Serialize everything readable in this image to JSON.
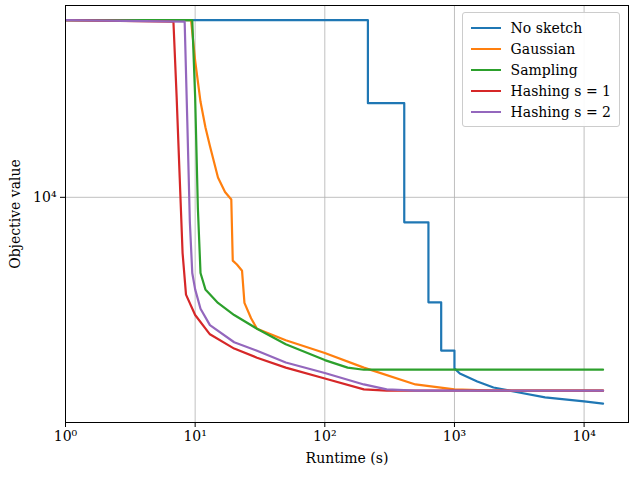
{
  "chart_data": {
    "type": "line",
    "xlabel": "Runtime (s)",
    "ylabel": "Objective value",
    "log": true,
    "grid": true,
    "legend": "upper right",
    "xlim": [
      1,
      22000
    ],
    "ylim": [
      1270,
      58000
    ],
    "xticks": [
      {
        "value": 1,
        "label": "10⁰"
      },
      {
        "value": 10,
        "label": "10¹"
      },
      {
        "value": 100,
        "label": "10²"
      },
      {
        "value": 1000,
        "label": "10³"
      },
      {
        "value": 10000,
        "label": "10⁴"
      }
    ],
    "yticks": [
      {
        "value": 10000,
        "label": "10⁴"
      }
    ],
    "series": [
      {
        "name": "No sketch",
        "color": "#1f77b4",
        "x": [
          1,
          215,
          215,
          410,
          410,
          630,
          630,
          790,
          790,
          1000,
          1000,
          1100,
          1500,
          2000,
          3000,
          5000,
          10000,
          14000
        ],
        "values": [
          50700,
          50700,
          23700,
          23700,
          7950,
          7950,
          3820,
          3820,
          2455,
          2455,
          2085,
          1990,
          1850,
          1750,
          1680,
          1600,
          1540,
          1510
        ]
      },
      {
        "name": "Gaussian",
        "color": "#ff7f0e",
        "x": [
          1,
          9.3,
          10,
          11,
          12,
          13,
          15,
          17,
          19,
          19.5,
          21,
          23,
          24,
          27,
          30,
          50,
          100,
          200,
          500,
          1000,
          2000,
          14000
        ],
        "values": [
          50700,
          50700,
          35000,
          24000,
          19000,
          16000,
          12000,
          10500,
          9800,
          5600,
          5400,
          5100,
          3800,
          3300,
          3000,
          2700,
          2400,
          2100,
          1800,
          1720,
          1700,
          1700
        ]
      },
      {
        "name": "Sampling",
        "color": "#2ca02c",
        "x": [
          1,
          9.5,
          10,
          10.5,
          11,
          12,
          15,
          20,
          30,
          50,
          100,
          150,
          200,
          14000
        ],
        "values": [
          50700,
          50700,
          25000,
          9000,
          5000,
          4300,
          3800,
          3400,
          3000,
          2600,
          2250,
          2100,
          2060,
          2060
        ]
      },
      {
        "name": "Hashing s = 1",
        "color": "#d62728",
        "x": [
          1,
          6.8,
          7.2,
          7.6,
          8,
          8.5,
          10,
          13,
          20,
          30,
          50,
          100,
          200,
          300,
          1000,
          14000
        ],
        "values": [
          50700,
          50000,
          25000,
          12000,
          6000,
          4100,
          3400,
          2850,
          2500,
          2300,
          2100,
          1900,
          1720,
          1700,
          1700,
          1700
        ]
      },
      {
        "name": "Hashing s = 2",
        "color": "#9467bd",
        "x": [
          1,
          8.3,
          8.7,
          9.1,
          9.5,
          10,
          11,
          13,
          20,
          30,
          50,
          100,
          200,
          300,
          500,
          14000
        ],
        "values": [
          50700,
          50000,
          20000,
          8000,
          5000,
          4300,
          3600,
          3100,
          2650,
          2450,
          2200,
          2000,
          1800,
          1720,
          1700,
          1700
        ]
      }
    ]
  }
}
